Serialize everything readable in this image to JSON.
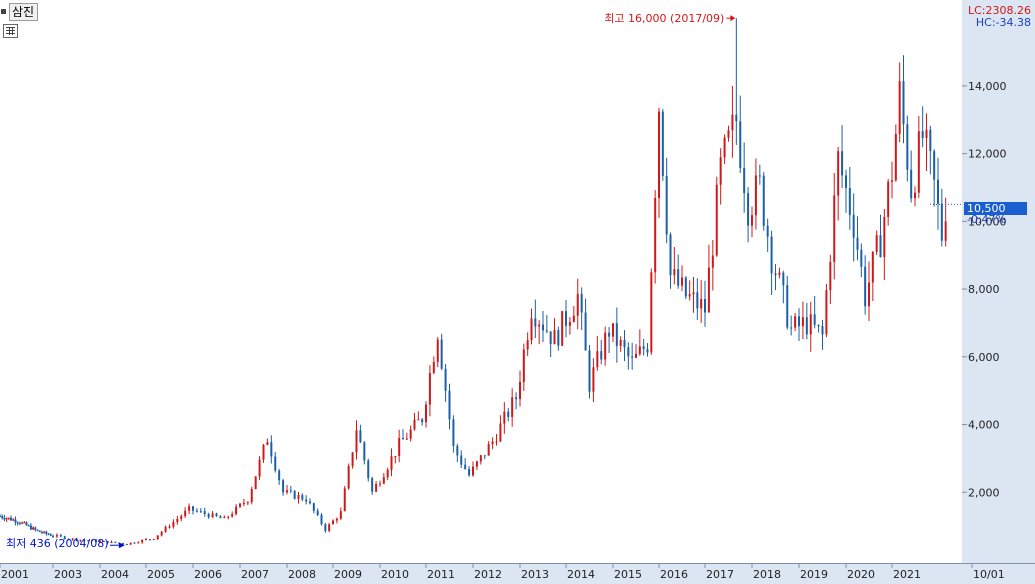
{
  "window": {
    "tab_label": "삼진",
    "lc_text": "LC:2308.26",
    "hc_text": "HC:-34.38"
  },
  "colors": {
    "up": "#d01818",
    "down": "#1a5fa8",
    "annotation_high": "#d01818",
    "annotation_low": "#0010c8",
    "badge": "#1a5fd0"
  },
  "icons": [
    "table-icon"
  ],
  "chart_data": {
    "type": "candlestick",
    "title": "",
    "xlabel": "",
    "ylabel": "",
    "ylim": [
      0,
      16300
    ],
    "grid": false,
    "y_axis_position": "right",
    "x_ticks": [
      "2001",
      "2003",
      "2004",
      "2005",
      "2006",
      "2007",
      "2008",
      "2009",
      "2010",
      "2011",
      "2012",
      "2013",
      "2014",
      "2015",
      "2016",
      "2017",
      "2018",
      "2019",
      "2020",
      "2021",
      "10/01"
    ],
    "y_ticks": [
      2000,
      4000,
      6000,
      8000,
      10000,
      12000,
      14000
    ],
    "y_tick_labels": [
      "2,000",
      "4,000",
      "6,000",
      "8,000",
      "10,000",
      "12,000",
      "14,000"
    ],
    "current_value": "10,500",
    "current_change": "-0.47%",
    "current_price": 10500,
    "high_annotation": {
      "text": "최고 16,000 (2017/09)",
      "value": 16000
    },
    "low_annotation": {
      "text": "최저 436 (2004/08)",
      "value": 436
    },
    "anchors": [
      [
        "2001-01",
        1300
      ],
      [
        "2001-09",
        1150
      ],
      [
        "2002-06",
        850
      ],
      [
        "2003-06",
        620
      ],
      [
        "2004-08",
        480
      ],
      [
        "2005-03",
        650
      ],
      [
        "2005-12",
        1500
      ],
      [
        "2006-09",
        1200
      ],
      [
        "2007-03",
        1800
      ],
      [
        "2007-08",
        3600
      ],
      [
        "2007-12",
        2000
      ],
      [
        "2008-06",
        1800
      ],
      [
        "2008-11",
        900
      ],
      [
        "2009-03",
        1400
      ],
      [
        "2009-07",
        3900
      ],
      [
        "2009-11",
        2000
      ],
      [
        "2010-06",
        3400
      ],
      [
        "2010-12",
        4200
      ],
      [
        "2011-04",
        6800
      ],
      [
        "2011-08",
        3300
      ],
      [
        "2011-12",
        2500
      ],
      [
        "2012-06",
        3500
      ],
      [
        "2012-12",
        4800
      ],
      [
        "2013-04",
        7500
      ],
      [
        "2013-10",
        6500
      ],
      [
        "2014-04",
        7800
      ],
      [
        "2014-07",
        5200
      ],
      [
        "2014-12",
        6800
      ],
      [
        "2015-06",
        5800
      ],
      [
        "2015-10",
        6400
      ],
      [
        "2016-01",
        13500
      ],
      [
        "2016-04",
        8400
      ],
      [
        "2016-08",
        7800
      ],
      [
        "2017-01",
        7400
      ],
      [
        "2017-05",
        11500
      ],
      [
        "2017-09",
        13000
      ],
      [
        "2017-12",
        10500
      ],
      [
        "2018-03",
        11000
      ],
      [
        "2018-06",
        9000
      ],
      [
        "2018-11",
        6800
      ],
      [
        "2019-03",
        7000
      ],
      [
        "2019-07",
        6600
      ],
      [
        "2019-11",
        11800
      ],
      [
        "2020-03",
        10000
      ],
      [
        "2020-06",
        7800
      ],
      [
        "2020-10",
        9500
      ],
      [
        "2021-01",
        11500
      ],
      [
        "2021-03",
        13700
      ],
      [
        "2021-06",
        11000
      ],
      [
        "2021-09",
        12500
      ],
      [
        "2021-12",
        11000
      ],
      [
        "2022-02",
        9600
      ],
      [
        "2022-03",
        10500
      ]
    ]
  }
}
